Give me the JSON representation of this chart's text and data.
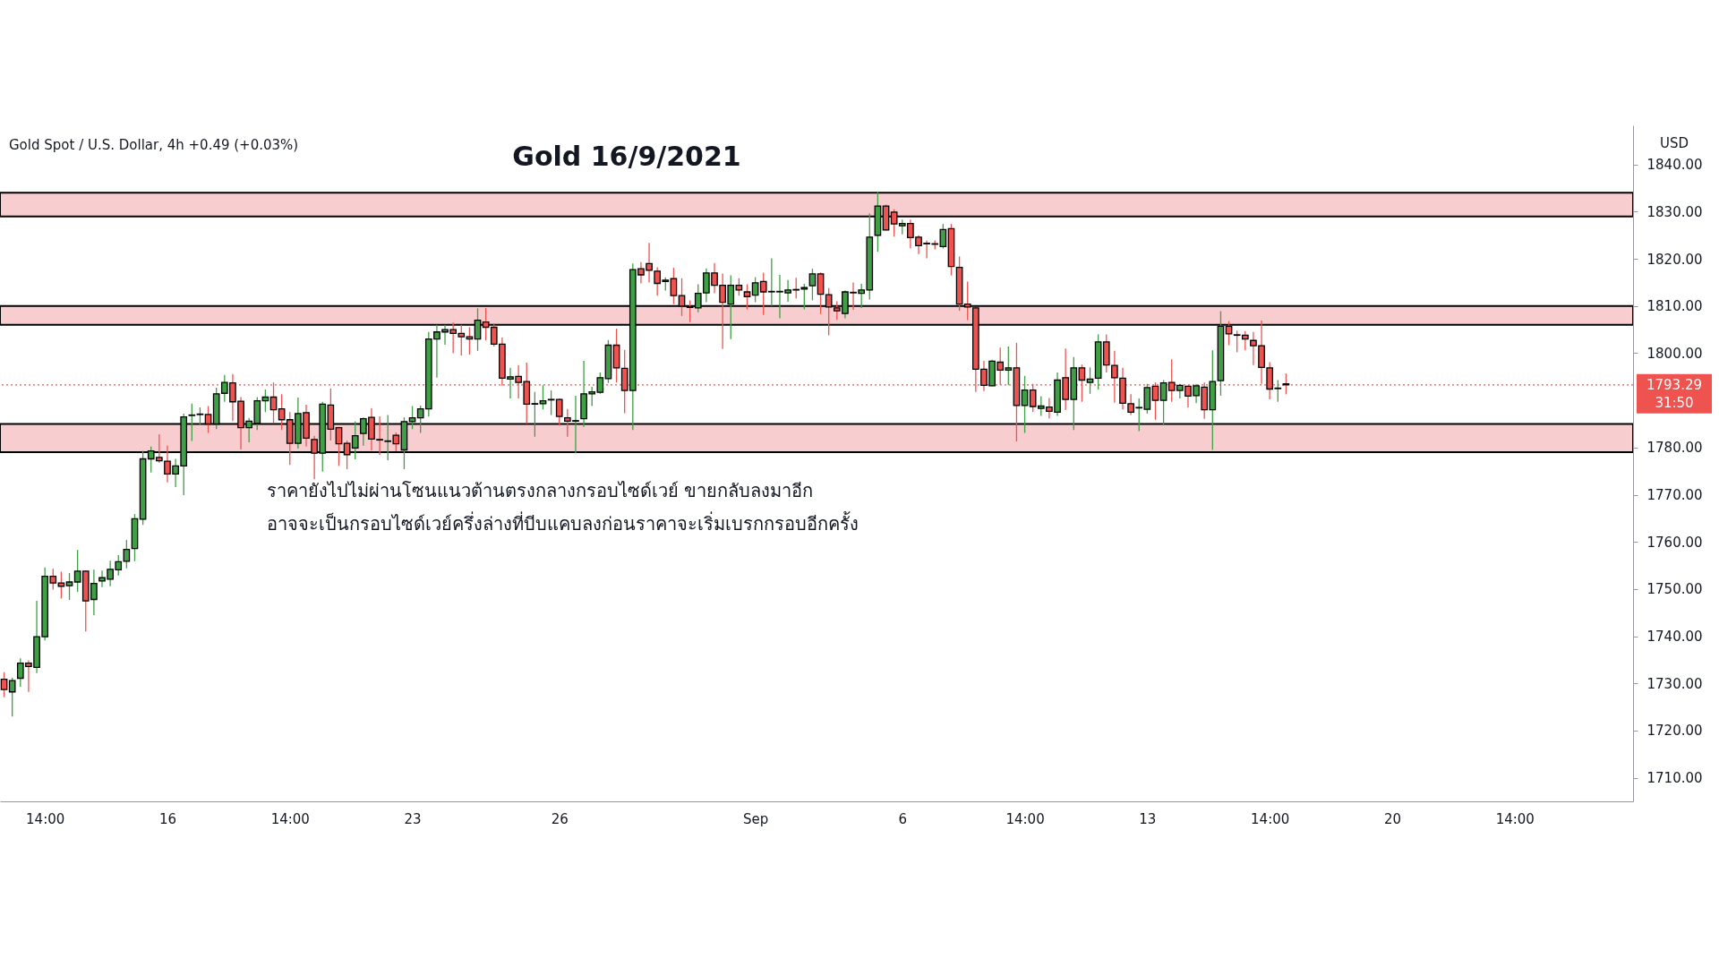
{
  "chart_data": {
    "type": "candlestick",
    "title": "Gold 16/9/2021",
    "subtitle": "Gold Spot / U.S. Dollar, 4h  +0.49 (+0.03%)",
    "ylabel": "USD",
    "annotations": [
      "ราคายังไปไม่ผ่านโซนแนวต้านตรงกลางกรอบไซด์เวย์ ขายกลับลงมาอีก",
      "อาจจะเป็นกรอบไซด์เวย์ครึ่งล่างที่บีบแคบลงก่อนราคาจะเริ่มเบรกกรอบอีกครั้ง",
      "31:50"
    ],
    "categories": [
      null,
      null,
      null,
      null,
      null,
      "14:00",
      null,
      null,
      null,
      null,
      null,
      null,
      null,
      null,
      null,
      null,
      null,
      null,
      null,
      null,
      "16",
      null,
      null,
      null,
      null,
      null,
      null,
      null,
      null,
      null,
      null,
      null,
      null,
      null,
      null,
      "14:00",
      null,
      null,
      null,
      null,
      null,
      null,
      null,
      null,
      null,
      null,
      null,
      null,
      null,
      null,
      "23",
      null,
      null,
      null,
      null,
      null,
      null,
      null,
      null,
      null,
      null,
      null,
      null,
      null,
      null,
      null,
      null,
      null,
      "26",
      null,
      null,
      null,
      null,
      null,
      null,
      null,
      null,
      null,
      null,
      null,
      null,
      null,
      null,
      null,
      null,
      null,
      null,
      null,
      null,
      null,
      null,
      null,
      "Sep",
      null,
      null,
      null,
      null,
      null,
      null,
      null,
      null,
      null,
      null,
      null,
      null,
      null,
      null,
      null,
      null,
      null,
      "6",
      null,
      null,
      null,
      null,
      null,
      null,
      null,
      null,
      null,
      null,
      null,
      null,
      null,
      null,
      "14:00",
      null,
      null,
      null,
      null,
      null,
      null,
      null,
      null,
      null,
      null,
      null,
      null,
      null,
      null,
      "13",
      null,
      null,
      null,
      null,
      null,
      null,
      null,
      null,
      null,
      null,
      null,
      null,
      null,
      null,
      "14:00",
      null,
      null,
      null,
      null,
      null,
      null,
      null,
      null,
      null,
      null,
      null,
      null,
      null,
      null,
      "20",
      null,
      null,
      null,
      null,
      null,
      null,
      null,
      null,
      null,
      null,
      null,
      null,
      null,
      null,
      "14:00",
      null,
      null,
      null,
      null,
      null,
      null,
      null,
      null,
      null,
      null,
      null,
      null,
      null,
      null
    ],
    "ylim": [
      1705,
      1848.3
    ],
    "yticks": [
      {
        "value": 1710,
        "label": "1710.00"
      },
      {
        "value": 1720,
        "label": "1720.00"
      },
      {
        "value": 1730,
        "label": "1730.00"
      },
      {
        "value": 1740,
        "label": "1740.00"
      },
      {
        "value": 1750,
        "label": "1750.00"
      },
      {
        "value": 1760,
        "label": "1760.00"
      },
      {
        "value": 1770,
        "label": "1770.00"
      },
      {
        "value": 1780,
        "label": "1780.00"
      },
      {
        "value": 1800,
        "label": "1800.00"
      },
      {
        "value": 1810,
        "label": "1810.00"
      },
      {
        "value": 1820,
        "label": "1820.00"
      },
      {
        "value": 1830,
        "label": "1830.00"
      },
      {
        "value": 1840,
        "label": "1840.00"
      }
    ],
    "ref_lines": [
      {
        "axis": "y",
        "value": 1793.29,
        "label": "1793.29",
        "color": "#ef5350",
        "line_style": "dotted"
      }
    ],
    "bands": [
      {
        "axis": "y",
        "from": 1829,
        "to": 1834,
        "color": "#f8cdd0"
      },
      {
        "axis": "y",
        "from": 1806,
        "to": 1810,
        "color": "#f8cdd0"
      },
      {
        "axis": "y",
        "from": 1779,
        "to": 1785,
        "color": "#f8cdd0"
      }
    ],
    "ohlc": [
      [
        1730.9,
        1732.4,
        1727.1,
        1728.7
      ],
      [
        1728.2,
        1731.2,
        1723.0,
        1730.6
      ],
      [
        1731.1,
        1735.3,
        1729.3,
        1734.3
      ],
      [
        1734.3,
        1734.9,
        1728.2,
        1733.6
      ],
      [
        1733.4,
        1747.5,
        1732.2,
        1739.9
      ],
      [
        1739.9,
        1754.6,
        1739.1,
        1752.7
      ],
      [
        1752.7,
        1754.3,
        1749.9,
        1751.3
      ],
      [
        1751.3,
        1753.7,
        1748.0,
        1750.6
      ],
      [
        1750.7,
        1753.4,
        1747.7,
        1751.5
      ],
      [
        1751.5,
        1758.3,
        1749.4,
        1753.8
      ],
      [
        1753.8,
        1753.9,
        1741.0,
        1747.5
      ],
      [
        1747.8,
        1754.1,
        1744.5,
        1751.2
      ],
      [
        1751.7,
        1753.9,
        1750.4,
        1752.4
      ],
      [
        1752.1,
        1756.0,
        1750.6,
        1754.2
      ],
      [
        1754.1,
        1757.2,
        1752.9,
        1755.8
      ],
      [
        1755.9,
        1760.4,
        1754.4,
        1758.4
      ],
      [
        1758.6,
        1765.9,
        1755.9,
        1764.9
      ],
      [
        1764.8,
        1779.3,
        1763.6,
        1777.6
      ],
      [
        1777.6,
        1780.2,
        1774.7,
        1779.3
      ],
      [
        1777.9,
        1782.8,
        1776.8,
        1777.2
      ],
      [
        1777.1,
        1780.4,
        1772.6,
        1774.4
      ],
      [
        1774.4,
        1777.6,
        1771.6,
        1776.1
      ],
      [
        1776.1,
        1787.2,
        1769.9,
        1786.5
      ],
      [
        1786.8,
        1789.3,
        1781.4,
        1786.9
      ],
      [
        1787.0,
        1788.5,
        1784.9,
        1787.1
      ],
      [
        1787.0,
        1788.8,
        1783.1,
        1785.0
      ],
      [
        1785.0,
        1792.7,
        1783.9,
        1791.4
      ],
      [
        1791.5,
        1795.4,
        1789.7,
        1793.8
      ],
      [
        1793.7,
        1795.6,
        1785.6,
        1789.7
      ],
      [
        1789.8,
        1790.7,
        1779.6,
        1784.2
      ],
      [
        1784.2,
        1786.3,
        1781.1,
        1785.6
      ],
      [
        1785.1,
        1790.7,
        1783.7,
        1789.9
      ],
      [
        1789.9,
        1792.3,
        1787.5,
        1790.7
      ],
      [
        1790.7,
        1793.8,
        1785.1,
        1788.0
      ],
      [
        1788.2,
        1791.3,
        1783.7,
        1785.9
      ],
      [
        1785.9,
        1787.5,
        1776.3,
        1780.9
      ],
      [
        1780.9,
        1790.6,
        1779.8,
        1787.2
      ],
      [
        1787.4,
        1789.1,
        1780.2,
        1782.0
      ],
      [
        1781.7,
        1782.5,
        1773.3,
        1778.8
      ],
      [
        1778.8,
        1789.7,
        1774.9,
        1789.2
      ],
      [
        1789.0,
        1792.5,
        1781.5,
        1783.9
      ],
      [
        1784.2,
        1784.4,
        1776.1,
        1780.8
      ],
      [
        1780.9,
        1781.5,
        1775.4,
        1778.5
      ],
      [
        1779.9,
        1785.5,
        1777.5,
        1782.5
      ],
      [
        1783.0,
        1786.4,
        1780.4,
        1786.1
      ],
      [
        1786.4,
        1788.3,
        1779.4,
        1781.8
      ],
      [
        1781.7,
        1786.6,
        1778.4,
        1781.6
      ],
      [
        1781.3,
        1786.9,
        1777.3,
        1781.4
      ],
      [
        1782.6,
        1783.2,
        1779.2,
        1780.8
      ],
      [
        1779.5,
        1786.4,
        1775.4,
        1785.5
      ],
      [
        1785.5,
        1788.8,
        1783.9,
        1786.3
      ],
      [
        1786.3,
        1788.9,
        1783.1,
        1788.2
      ],
      [
        1788.2,
        1804.5,
        1786.6,
        1803.0
      ],
      [
        1803.0,
        1806.0,
        1794.8,
        1804.5
      ],
      [
        1804.5,
        1806.0,
        1801.8,
        1805.0
      ],
      [
        1805.0,
        1806.5,
        1800.0,
        1804.2
      ],
      [
        1804.2,
        1806.0,
        1799.5,
        1803.5
      ],
      [
        1803.5,
        1805.5,
        1799.7,
        1803.0
      ],
      [
        1803.0,
        1809.5,
        1800.5,
        1807.0
      ],
      [
        1806.6,
        1809.6,
        1802.7,
        1805.5
      ],
      [
        1805.5,
        1806.3,
        1801.4,
        1801.9
      ],
      [
        1801.9,
        1803.3,
        1793.1,
        1794.7
      ],
      [
        1794.5,
        1796.9,
        1790.4,
        1795.0
      ],
      [
        1795.1,
        1797.5,
        1790.4,
        1793.8
      ],
      [
        1794.0,
        1798.0,
        1785.0,
        1789.2
      ],
      [
        1789.2,
        1791.8,
        1782.3,
        1789.3
      ],
      [
        1789.3,
        1793.2,
        1788.1,
        1789.9
      ],
      [
        1790.1,
        1792.1,
        1786.9,
        1790.2
      ],
      [
        1790.2,
        1790.4,
        1784.7,
        1786.6
      ],
      [
        1786.3,
        1788.2,
        1782.3,
        1785.6
      ],
      [
        1785.6,
        1791.0,
        1778.8,
        1785.7
      ],
      [
        1786.1,
        1798.4,
        1784.4,
        1791.4
      ],
      [
        1791.4,
        1792.9,
        1788.8,
        1791.8
      ],
      [
        1791.7,
        1795.9,
        1791.4,
        1794.8
      ],
      [
        1794.6,
        1802.8,
        1793.7,
        1801.7
      ],
      [
        1801.7,
        1805.2,
        1793.8,
        1796.9
      ],
      [
        1796.8,
        1800.7,
        1787.3,
        1792.1
      ],
      [
        1792.1,
        1819.0,
        1783.7,
        1817.7
      ],
      [
        1817.9,
        1819.3,
        1814.8,
        1816.6
      ],
      [
        1819.0,
        1823.4,
        1815.0,
        1817.6
      ],
      [
        1817.4,
        1818.2,
        1812.2,
        1814.8
      ],
      [
        1815.2,
        1816.1,
        1813.3,
        1815.5
      ],
      [
        1815.8,
        1818.1,
        1810.4,
        1812.2
      ],
      [
        1812.2,
        1815.9,
        1807.9,
        1810.0
      ],
      [
        1809.8,
        1811.2,
        1806.6,
        1809.7
      ],
      [
        1809.6,
        1814.6,
        1808.7,
        1812.7
      ],
      [
        1812.8,
        1818.0,
        1810.8,
        1817.0
      ],
      [
        1817.0,
        1819.1,
        1812.7,
        1814.4
      ],
      [
        1814.4,
        1816.9,
        1800.9,
        1810.8
      ],
      [
        1810.4,
        1816.5,
        1803.0,
        1814.4
      ],
      [
        1814.4,
        1815.9,
        1812.2,
        1813.4
      ],
      [
        1813.0,
        1814.6,
        1809.3,
        1812.0
      ],
      [
        1812.3,
        1816.1,
        1810.8,
        1814.9
      ],
      [
        1815.2,
        1817.1,
        1808.1,
        1813.0
      ],
      [
        1813.0,
        1820.1,
        1810.0,
        1813.1
      ],
      [
        1813.0,
        1816.6,
        1807.4,
        1813.1
      ],
      [
        1812.8,
        1815.5,
        1810.9,
        1813.4
      ],
      [
        1813.5,
        1816.0,
        1811.6,
        1813.4
      ],
      [
        1813.6,
        1814.7,
        1809.3,
        1813.9
      ],
      [
        1814.3,
        1817.9,
        1811.2,
        1816.8
      ],
      [
        1816.8,
        1817.1,
        1808.3,
        1812.5
      ],
      [
        1812.4,
        1813.8,
        1803.8,
        1809.8
      ],
      [
        1809.6,
        1811.0,
        1807.1,
        1809.0
      ],
      [
        1808.4,
        1813.3,
        1807.4,
        1813.0
      ],
      [
        1812.9,
        1815.0,
        1809.2,
        1812.8
      ],
      [
        1812.7,
        1814.7,
        1809.6,
        1813.4
      ],
      [
        1813.4,
        1829.6,
        1811.4,
        1824.6
      ],
      [
        1825.0,
        1834.2,
        1821.5,
        1831.2
      ],
      [
        1831.2,
        1831.5,
        1826.0,
        1826.1
      ],
      [
        1829.9,
        1830.5,
        1824.7,
        1827.4
      ],
      [
        1827.0,
        1828.3,
        1825.2,
        1827.5
      ],
      [
        1827.5,
        1828.3,
        1822.2,
        1824.5
      ],
      [
        1824.6,
        1825.0,
        1821.0,
        1822.8
      ],
      [
        1823.3,
        1823.9,
        1820.1,
        1823.2
      ],
      [
        1823.2,
        1823.9,
        1822.0,
        1823.1
      ],
      [
        1822.6,
        1827.4,
        1822.2,
        1826.2
      ],
      [
        1826.4,
        1827.4,
        1816.5,
        1818.4
      ],
      [
        1818.2,
        1820.5,
        1809.0,
        1810.4
      ],
      [
        1810.4,
        1815.2,
        1807.0,
        1809.8
      ],
      [
        1809.6,
        1809.7,
        1791.8,
        1796.6
      ],
      [
        1796.6,
        1798.4,
        1792.0,
        1793.2
      ],
      [
        1793.1,
        1798.6,
        1793.0,
        1798.3
      ],
      [
        1798.1,
        1801.2,
        1793.3,
        1796.4
      ],
      [
        1796.4,
        1801.4,
        1793.2,
        1796.9
      ],
      [
        1796.9,
        1802.2,
        1781.3,
        1788.9
      ],
      [
        1788.9,
        1795.2,
        1783.1,
        1792.2
      ],
      [
        1792.2,
        1793.5,
        1787.5,
        1788.7
      ],
      [
        1788.3,
        1790.9,
        1786.7,
        1788.8
      ],
      [
        1788.6,
        1790.5,
        1786.2,
        1787.7
      ],
      [
        1787.5,
        1795.9,
        1786.7,
        1794.3
      ],
      [
        1794.8,
        1801.0,
        1788.0,
        1790.2
      ],
      [
        1790.2,
        1799.2,
        1783.7,
        1796.9
      ],
      [
        1796.9,
        1797.6,
        1789.7,
        1794.3
      ],
      [
        1793.8,
        1797.0,
        1791.4,
        1794.5
      ],
      [
        1794.7,
        1804.0,
        1792.3,
        1802.4
      ],
      [
        1802.4,
        1804.0,
        1795.9,
        1797.5
      ],
      [
        1797.4,
        1800.5,
        1789.5,
        1794.8
      ],
      [
        1794.7,
        1796.9,
        1788.1,
        1789.4
      ],
      [
        1789.3,
        1791.3,
        1786.9,
        1787.5
      ],
      [
        1788.4,
        1790.4,
        1783.5,
        1788.5
      ],
      [
        1788.1,
        1793.5,
        1787.2,
        1792.7
      ],
      [
        1793.0,
        1793.8,
        1785.9,
        1790.0
      ],
      [
        1790.0,
        1794.3,
        1784.7,
        1793.7
      ],
      [
        1793.8,
        1798.7,
        1789.7,
        1792.1
      ],
      [
        1792.1,
        1793.5,
        1790.4,
        1793.2
      ],
      [
        1793.0,
        1793.2,
        1788.5,
        1790.9
      ],
      [
        1791.0,
        1793.5,
        1789.4,
        1793.1
      ],
      [
        1792.8,
        1793.8,
        1786.1,
        1788.0
      ],
      [
        1788.0,
        1800.6,
        1779.5,
        1794.0
      ],
      [
        1794.2,
        1808.9,
        1791.0,
        1805.7
      ],
      [
        1805.7,
        1806.8,
        1801.7,
        1804.1
      ],
      [
        1803.9,
        1804.8,
        1800.2,
        1803.8
      ],
      [
        1803.8,
        1804.7,
        1800.6,
        1803.0
      ],
      [
        1802.7,
        1804.5,
        1797.5,
        1801.6
      ],
      [
        1801.6,
        1806.9,
        1793.5,
        1797.0
      ],
      [
        1796.9,
        1798.1,
        1790.2,
        1792.4
      ],
      [
        1792.5,
        1794.3,
        1789.7,
        1792.6
      ],
      [
        1793.5,
        1795.7,
        1791.3,
        1793.3
      ],
      null,
      null,
      null,
      null,
      null,
      null,
      null,
      null,
      null,
      null,
      null,
      null,
      null,
      null,
      null,
      null,
      null,
      null,
      null,
      null,
      null,
      null,
      null,
      null,
      null,
      null,
      null,
      null,
      null,
      null,
      null,
      null,
      null,
      null,
      null,
      null,
      null,
      null,
      null,
      null,
      null,
      null
    ],
    "colors": [
      "#ef5350",
      "#3f9f45",
      "#3f9f45",
      "#ef5350",
      "#3f9f45",
      "#3f9f45",
      "#ef5350",
      "#ef5350",
      "#3f9f45",
      "#3f9f45",
      "#ef5350",
      "#3f9f45",
      "#3f9f45",
      "#3f9f45",
      "#3f9f45",
      "#3f9f45",
      "#3f9f45",
      "#3f9f45",
      "#3f9f45",
      "#ef5350",
      "#ef5350",
      "#3f9f45",
      "#3f9f45",
      "#3f9f45",
      "#3f9f45",
      "#ef5350",
      "#3f9f45",
      "#3f9f45",
      "#ef5350",
      "#ef5350",
      "#3f9f45",
      "#3f9f45",
      "#3f9f45",
      "#ef5350",
      "#ef5350",
      "#ef5350",
      "#3f9f45",
      "#ef5350",
      "#ef5350",
      "#3f9f45",
      "#ef5350",
      "#ef5350",
      "#ef5350",
      "#3f9f45",
      "#3f9f45",
      "#ef5350",
      "#ef5350",
      "#3f9f45",
      "#ef5350",
      "#3f9f45",
      "#3f9f45",
      "#3f9f45",
      "#3f9f45",
      "#3f9f45",
      "#3f9f45",
      "#ef5350",
      "#ef5350",
      "#ef5350",
      "#3f9f45",
      "#ef5350",
      "#ef5350",
      "#ef5350",
      "#3f9f45",
      "#ef5350",
      "#ef5350",
      "#3f9f45",
      "#3f9f45",
      "#3f9f45",
      "#ef5350",
      "#ef5350",
      "#3f9f45",
      "#3f9f45",
      "#3f9f45",
      "#3f9f45",
      "#3f9f45",
      "#ef5350",
      "#ef5350",
      "#3f9f45",
      "#ef5350",
      "#ef5350",
      "#ef5350",
      "#3f9f45",
      "#ef5350",
      "#ef5350",
      "#ef5350",
      "#3f9f45",
      "#3f9f45",
      "#ef5350",
      "#ef5350",
      "#3f9f45",
      "#ef5350",
      "#ef5350",
      "#3f9f45",
      "#ef5350",
      "#3f9f45",
      "#3f9f45",
      "#3f9f45",
      "#ef5350",
      "#3f9f45",
      "#3f9f45",
      "#ef5350",
      "#ef5350",
      "#ef5350",
      "#3f9f45",
      "#ef5350",
      "#3f9f45",
      "#3f9f45",
      "#3f9f45",
      "#ef5350",
      "#ef5350",
      "#3f9f45",
      "#ef5350",
      "#ef5350",
      "#ef5350",
      "#ef5350",
      "#3f9f45",
      "#ef5350",
      "#ef5350",
      "#ef5350",
      "#ef5350",
      "#ef5350",
      "#3f9f45",
      "#ef5350",
      "#3f9f45",
      "#ef5350",
      "#3f9f45",
      "#ef5350",
      "#3f9f45",
      "#ef5350",
      "#3f9f45",
      "#ef5350",
      "#3f9f45",
      "#ef5350",
      "#3f9f45",
      "#3f9f45",
      "#ef5350",
      "#ef5350",
      "#ef5350",
      "#ef5350",
      "#3f9f45",
      "#3f9f45",
      "#ef5350",
      "#3f9f45",
      "#ef5350",
      "#3f9f45",
      "#ef5350",
      "#3f9f45",
      "#ef5350",
      "#3f9f45",
      "#3f9f45",
      "#ef5350",
      "#ef5350",
      "#ef5350",
      "#ef5350",
      "#ef5350",
      "#ef5350",
      "#3f9f45",
      "#ef5350",
      null,
      null,
      null,
      null,
      null,
      null,
      null,
      null,
      null,
      null,
      null,
      null,
      null,
      null,
      null,
      null,
      null,
      null,
      null,
      null,
      null,
      null,
      null,
      null,
      null,
      null,
      null,
      null,
      null,
      null,
      null,
      null,
      null,
      null,
      null,
      null,
      null,
      null,
      null,
      null,
      null,
      null
    ]
  }
}
